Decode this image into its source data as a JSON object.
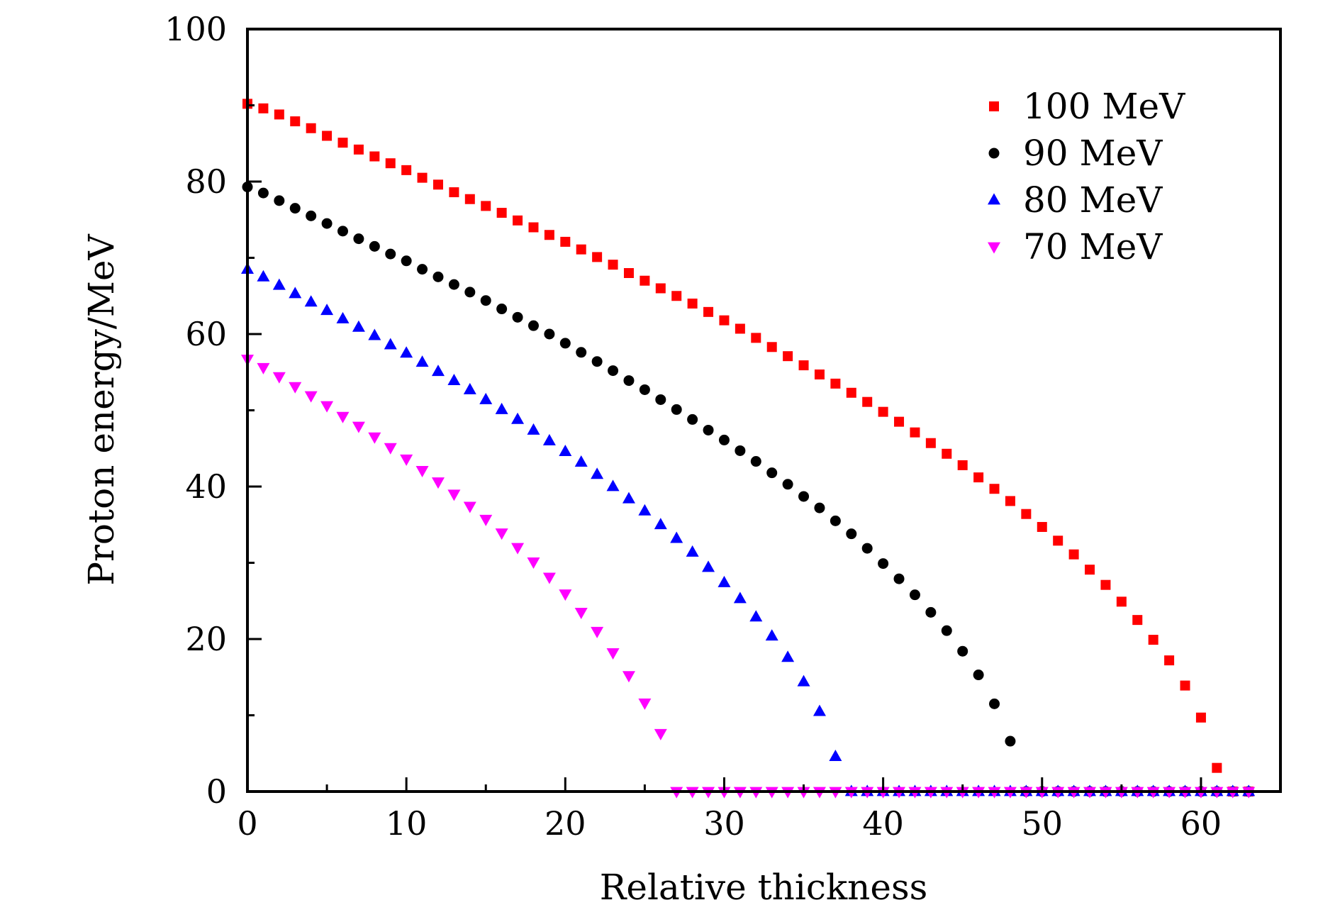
{
  "chart_data": {
    "type": "scatter",
    "xlabel": "Relative thickness",
    "ylabel": "Proton energy/MeV",
    "xlim": [
      0,
      65
    ],
    "ylim": [
      0,
      100
    ],
    "x_ticks": [
      0,
      10,
      20,
      30,
      40,
      50,
      60
    ],
    "y_ticks": [
      0,
      20,
      40,
      60,
      80,
      100
    ],
    "legend_position": "top-right",
    "series": [
      {
        "name": "100 MeV",
        "color": "#ff0000",
        "marker": "square",
        "x": [
          0,
          1,
          2,
          3,
          4,
          5,
          6,
          7,
          8,
          9,
          10,
          11,
          12,
          13,
          14,
          15,
          16,
          17,
          18,
          19,
          20,
          21,
          22,
          23,
          24,
          25,
          26,
          27,
          28,
          29,
          30,
          31,
          32,
          33,
          34,
          35,
          36,
          37,
          38,
          39,
          40,
          41,
          42,
          43,
          44,
          45,
          46,
          47,
          48,
          49,
          50,
          51,
          52,
          53,
          54,
          55,
          56,
          57,
          58,
          59,
          60,
          61,
          62,
          63
        ],
        "y": [
          90.2,
          89.6,
          88.8,
          87.9,
          87.0,
          86.0,
          85.1,
          84.2,
          83.3,
          82.4,
          81.5,
          80.5,
          79.6,
          78.6,
          77.7,
          76.8,
          75.9,
          74.9,
          74.0,
          73.0,
          72.1,
          71.1,
          70.1,
          69.1,
          68.0,
          67.0,
          66.0,
          65.0,
          64.0,
          62.9,
          61.8,
          60.7,
          59.5,
          58.3,
          57.1,
          55.9,
          54.7,
          53.5,
          52.3,
          51.1,
          49.8,
          48.5,
          47.1,
          45.7,
          44.3,
          42.8,
          41.2,
          39.7,
          38.1,
          36.4,
          34.7,
          32.9,
          31.1,
          29.1,
          27.1,
          24.9,
          22.5,
          19.9,
          17.2,
          13.9,
          9.7,
          3.1,
          0,
          0
        ]
      },
      {
        "name": "90 MeV",
        "color": "#000000",
        "marker": "circle",
        "x": [
          0,
          1,
          2,
          3,
          4,
          5,
          6,
          7,
          8,
          9,
          10,
          11,
          12,
          13,
          14,
          15,
          16,
          17,
          18,
          19,
          20,
          21,
          22,
          23,
          24,
          25,
          26,
          27,
          28,
          29,
          30,
          31,
          32,
          33,
          34,
          35,
          36,
          37,
          38,
          39,
          40,
          41,
          42,
          43,
          44,
          45,
          46,
          47,
          48,
          49,
          50,
          51,
          52,
          53,
          54,
          55,
          56,
          57,
          58,
          59,
          60,
          61,
          62,
          63
        ],
        "y": [
          79.3,
          78.5,
          77.5,
          76.5,
          75.5,
          74.5,
          73.5,
          72.5,
          71.5,
          70.5,
          69.6,
          68.5,
          67.5,
          66.5,
          65.5,
          64.4,
          63.3,
          62.2,
          61.1,
          60.0,
          58.8,
          57.6,
          56.4,
          55.2,
          53.9,
          52.7,
          51.4,
          50.1,
          48.8,
          47.4,
          46.1,
          44.7,
          43.3,
          41.8,
          40.3,
          38.7,
          37.2,
          35.5,
          33.8,
          31.9,
          29.9,
          27.9,
          25.8,
          23.5,
          21.1,
          18.4,
          15.3,
          11.5,
          6.6,
          0,
          0,
          0,
          0,
          0,
          0,
          0,
          0,
          0,
          0,
          0,
          0,
          0,
          0,
          0
        ]
      },
      {
        "name": "80 MeV",
        "color": "#0000ff",
        "marker": "triangle-up",
        "x": [
          0,
          1,
          2,
          3,
          4,
          5,
          6,
          7,
          8,
          9,
          10,
          11,
          12,
          13,
          14,
          15,
          16,
          17,
          18,
          19,
          20,
          21,
          22,
          23,
          24,
          25,
          26,
          27,
          28,
          29,
          30,
          31,
          32,
          33,
          34,
          35,
          36,
          37,
          38,
          39,
          40,
          41,
          42,
          43,
          44,
          45,
          46,
          47,
          48,
          49,
          50,
          51,
          52,
          53,
          54,
          55,
          56,
          57,
          58,
          59,
          60,
          61,
          62,
          63
        ],
        "y": [
          68.5,
          67.5,
          66.4,
          65.3,
          64.2,
          63.1,
          62.0,
          60.9,
          59.8,
          58.6,
          57.5,
          56.3,
          55.1,
          53.9,
          52.7,
          51.4,
          50.1,
          48.8,
          47.4,
          46.0,
          44.6,
          43.2,
          41.6,
          40.0,
          38.4,
          36.8,
          35.0,
          33.2,
          31.4,
          29.4,
          27.4,
          25.3,
          22.9,
          20.4,
          17.6,
          14.4,
          10.5,
          4.6,
          0,
          0,
          0,
          0,
          0,
          0,
          0,
          0,
          0,
          0,
          0,
          0,
          0,
          0,
          0,
          0,
          0,
          0,
          0,
          0,
          0,
          0,
          0,
          0,
          0,
          0
        ]
      },
      {
        "name": "70 MeV",
        "color": "#ff00ff",
        "marker": "triangle-down",
        "x": [
          0,
          1,
          2,
          3,
          4,
          5,
          6,
          7,
          8,
          9,
          10,
          11,
          12,
          13,
          14,
          15,
          16,
          17,
          18,
          19,
          20,
          21,
          22,
          23,
          24,
          25,
          26,
          27,
          28,
          29,
          30,
          31,
          32,
          33,
          34,
          35,
          36,
          37,
          38,
          39,
          40,
          41,
          42,
          43,
          44,
          45,
          46,
          47,
          48,
          49,
          50,
          51,
          52,
          53,
          54,
          55,
          56,
          57,
          58,
          59,
          60,
          61,
          62,
          63
        ],
        "y": [
          56.7,
          55.6,
          54.4,
          53.1,
          51.9,
          50.6,
          49.2,
          47.9,
          46.5,
          45.1,
          43.6,
          42.1,
          40.6,
          39.0,
          37.4,
          35.7,
          33.9,
          32.0,
          30.1,
          28.1,
          25.9,
          23.5,
          21.0,
          18.2,
          15.2,
          11.6,
          7.6,
          0,
          0,
          0,
          0,
          0,
          0,
          0,
          0,
          0,
          0,
          0,
          0,
          0,
          0,
          0,
          0,
          0,
          0,
          0,
          0,
          0,
          0,
          0,
          0,
          0,
          0,
          0,
          0,
          0,
          0,
          0,
          0,
          0,
          0,
          0,
          0,
          0
        ]
      }
    ]
  }
}
